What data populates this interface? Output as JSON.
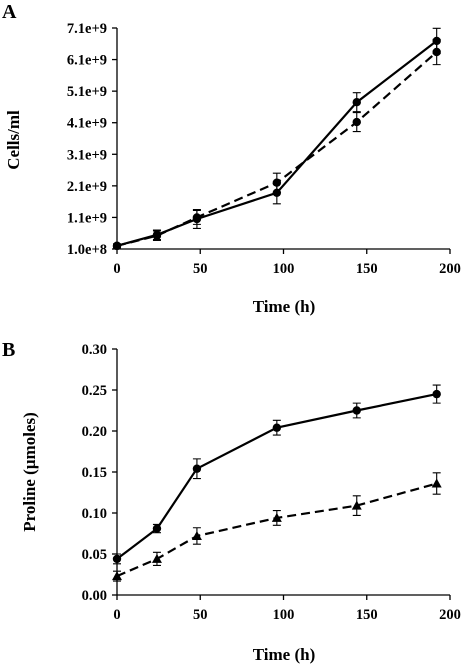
{
  "panels": [
    {
      "letter": "A"
    },
    {
      "letter": "B"
    }
  ],
  "chart_data": [
    {
      "type": "line",
      "xlabel": "Time (h)",
      "ylabel": "Cells/ml",
      "xlim": [
        0,
        200
      ],
      "ylim": [
        100000000,
        7100000000
      ],
      "x_ticks": [
        "0",
        "50",
        "100",
        "150",
        "200"
      ],
      "y_ticks": [
        "1.0e+8",
        "1.1e+9",
        "2.1e+9",
        "3.1e+9",
        "4.1e+9",
        "5.1e+9",
        "6.1e+9",
        "7.1e+9"
      ],
      "x": [
        0,
        24,
        48,
        96,
        144,
        192
      ],
      "series": [
        {
          "marker": "circle",
          "line_style": "solid",
          "values": [
            200000000,
            550000000,
            1050000000,
            1880000000,
            4750000000,
            6690000000
          ],
          "errors": [
            60000000,
            150000000,
            300000000,
            350000000,
            300000000,
            400000000
          ]
        },
        {
          "marker": "circle",
          "line_style": "dashed",
          "values": [
            200000000,
            520000000,
            1100000000,
            2200000000,
            4120000000,
            6340000000
          ],
          "errors": [
            60000000,
            150000000,
            220000000,
            300000000,
            300000000,
            400000000
          ]
        }
      ],
      "grid": false
    },
    {
      "type": "line",
      "xlabel": "Time (h)",
      "ylabel": "Proline (µmoles)",
      "xlim": [
        0,
        200
      ],
      "ylim": [
        0,
        0.3
      ],
      "x_ticks": [
        "0",
        "50",
        "100",
        "150",
        "200"
      ],
      "y_ticks": [
        "0.00",
        "0.05",
        "0.10",
        "0.15",
        "0.20",
        "0.25",
        "0.30"
      ],
      "x": [
        0,
        24,
        48,
        96,
        144,
        192
      ],
      "series": [
        {
          "marker": "circle",
          "line_style": "solid",
          "values": [
            0.044,
            0.081,
            0.154,
            0.204,
            0.225,
            0.245
          ],
          "errors": [
            0.006,
            0.005,
            0.012,
            0.009,
            0.009,
            0.011
          ]
        },
        {
          "marker": "triangle",
          "line_style": "dashed",
          "values": [
            0.023,
            0.044,
            0.072,
            0.094,
            0.109,
            0.136
          ],
          "errors": [
            0.006,
            0.008,
            0.01,
            0.009,
            0.012,
            0.013
          ]
        }
      ],
      "grid": false
    }
  ]
}
